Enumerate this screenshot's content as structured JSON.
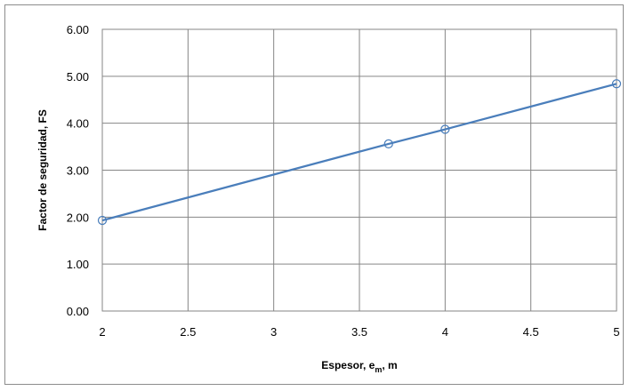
{
  "chart_data": {
    "type": "line",
    "title": "",
    "xlabel": {
      "main": "Espesor, e",
      "sub": "m",
      "suffix": ", m"
    },
    "ylabel": "Factor de seguridad, FS",
    "xlim": [
      2,
      5
    ],
    "ylim": [
      0,
      6
    ],
    "x_ticks": [
      "2",
      "2.5",
      "3",
      "3.5",
      "4",
      "4.5",
      "5"
    ],
    "y_ticks": [
      "0.00",
      "1.00",
      "2.00",
      "3.00",
      "4.00",
      "5.00",
      "6.00"
    ],
    "grid": true,
    "legend": "none",
    "series": [
      {
        "color": "#4a7ebb",
        "marker": "open-circle",
        "points": [
          {
            "x": 2.0,
            "y": 1.93
          },
          {
            "x": 3.67,
            "y": 3.56
          },
          {
            "x": 4.0,
            "y": 3.87
          },
          {
            "x": 5.0,
            "y": 4.84
          }
        ]
      }
    ]
  }
}
